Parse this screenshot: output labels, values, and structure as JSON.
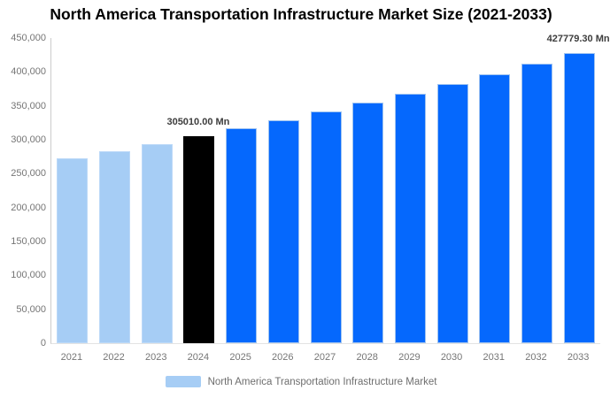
{
  "page": {
    "title": "North America Transportation Infrastructure Market Size (2021-2033)"
  },
  "chart_data": {
    "type": "bar",
    "title": "North America Transportation Infrastructure Market Size (2021-2033)",
    "categories": [
      "2021",
      "2022",
      "2023",
      "2024",
      "2025",
      "2026",
      "2027",
      "2028",
      "2029",
      "2030",
      "2031",
      "2032",
      "2033"
    ],
    "values": [
      272500,
      282900,
      293800,
      305010,
      316700,
      328800,
      341400,
      354500,
      368100,
      382200,
      396900,
      412000,
      427779.3
    ],
    "unit": "Mn",
    "xlabel": "",
    "ylabel": "",
    "ylim": [
      0,
      450000
    ],
    "ytick_step": 50000,
    "ytick_labels": [
      "450,000",
      "400,000",
      "350,000",
      "300,000",
      "250,000",
      "200,000",
      "150,000",
      "100,000",
      "50,000",
      "0"
    ],
    "grid": false,
    "legend_position": "bottom",
    "series_name": "North America Transportation Infrastructure Market",
    "bar_colors": [
      "#a6cdf5",
      "#a6cdf5",
      "#a6cdf5",
      "#000000",
      "#0568fd",
      "#0568fd",
      "#0568fd",
      "#0568fd",
      "#0568fd",
      "#0568fd",
      "#0568fd",
      "#0568fd",
      "#0568fd"
    ],
    "bar_strokes": [
      "#bcd9f8",
      "#bcd9f8",
      "#bcd9f8",
      "#000000",
      "#9fc3f0",
      "#9fc3f0",
      "#9fc3f0",
      "#9fc3f0",
      "#9fc3f0",
      "#9fc3f0",
      "#9fc3f0",
      "#9fc3f0",
      "#9fc3f0"
    ],
    "annotations": [
      {
        "category": "2024",
        "text": "305010.00 Mn"
      },
      {
        "category": "2033",
        "text": "427779.30 Mn"
      }
    ],
    "palette": {
      "historical_bar": "#a6cdf5",
      "highlight_bar": "#000000",
      "forecast_bar": "#0568fd",
      "axis_line": "#cccccc",
      "tick_text": "#757575",
      "annotation_text": "#3d3d3d",
      "legend_text": "#6e6e6e"
    }
  },
  "legend": {
    "label": "North America Transportation Infrastructure Market",
    "swatch_color": "#a6cdf5"
  }
}
